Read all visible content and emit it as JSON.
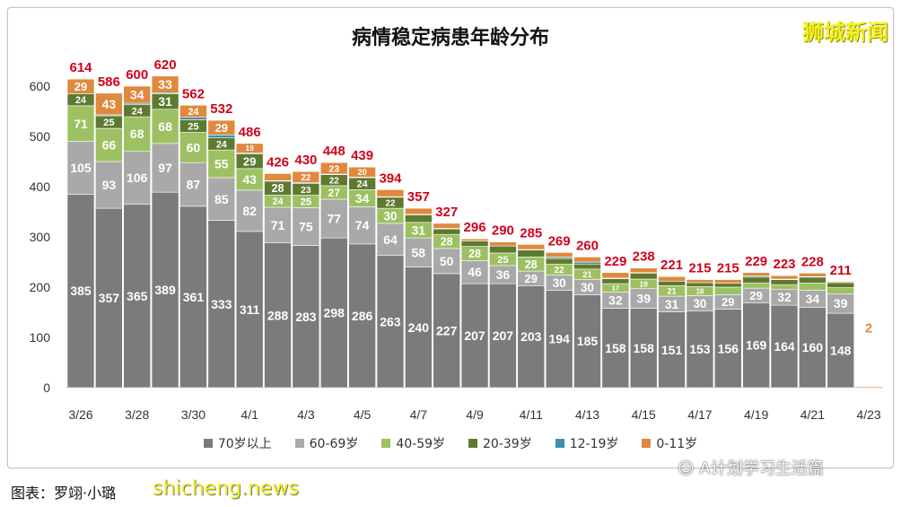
{
  "chart_data": {
    "type": "bar",
    "stacked": true,
    "title": "病情稳定病患年龄分布",
    "categories": [
      "3/26",
      "3/27",
      "3/28",
      "3/29",
      "3/30",
      "3/31",
      "4/1",
      "4/2",
      "4/3",
      "4/4",
      "4/5",
      "4/6",
      "4/7",
      "4/8",
      "4/9",
      "4/10",
      "4/11",
      "4/12",
      "4/13",
      "4/14",
      "4/15",
      "4/16",
      "4/17",
      "4/18",
      "4/19",
      "4/20",
      "4/21",
      "4/22",
      "4/23"
    ],
    "x_tick_labels": [
      "3/26",
      "3/28",
      "3/30",
      "4/1",
      "4/3",
      "4/5",
      "4/7",
      "4/9",
      "4/11",
      "4/13",
      "4/15",
      "4/17",
      "4/19",
      "4/21",
      "4/23"
    ],
    "ylim": [
      0,
      600
    ],
    "y_ticks": [
      0,
      100,
      200,
      300,
      400,
      500,
      600
    ],
    "grid": false,
    "legend_position": "bottom",
    "series": [
      {
        "name": "70岁以上",
        "color": "#7b7b7b",
        "values": [
          385,
          357,
          365,
          389,
          361,
          333,
          311,
          288,
          283,
          298,
          286,
          263,
          240,
          227,
          207,
          207,
          203,
          194,
          185,
          158,
          158,
          151,
          153,
          156,
          169,
          164,
          160,
          148,
          0
        ]
      },
      {
        "name": "60-69岁",
        "color": "#a9a9a9",
        "values": [
          105,
          93,
          106,
          97,
          87,
          85,
          82,
          71,
          75,
          77,
          74,
          64,
          58,
          50,
          46,
          36,
          29,
          30,
          30,
          32,
          39,
          31,
          30,
          29,
          29,
          32,
          34,
          39,
          0
        ]
      },
      {
        "name": "40-59岁",
        "color": "#9dc162",
        "values": [
          71,
          66,
          68,
          68,
          60,
          55,
          43,
          24,
          25,
          27,
          34,
          30,
          31,
          28,
          28,
          25,
          28,
          22,
          21,
          17,
          19,
          21,
          18,
          15,
          10,
          9,
          14,
          12,
          0
        ]
      },
      {
        "name": "20-39岁",
        "color": "#5e7a30",
        "values": [
          24,
          25,
          24,
          31,
          25,
          24,
          29,
          28,
          23,
          22,
          24,
          22,
          15,
          11,
          11,
          14,
          14,
          11,
          10,
          10,
          12,
          9,
          8,
          8,
          12,
          10,
          12,
          10,
          0
        ]
      },
      {
        "name": "12-19岁",
        "color": "#3f8fa6",
        "values": [
          0,
          2,
          3,
          2,
          5,
          6,
          2,
          1,
          2,
          1,
          1,
          1,
          1,
          1,
          0,
          0,
          1,
          3,
          4,
          1,
          1,
          0,
          0,
          0,
          2,
          1,
          1,
          0,
          0
        ]
      },
      {
        "name": "0-11岁",
        "color": "#e0893e",
        "values": [
          29,
          43,
          34,
          33,
          24,
          29,
          19,
          14,
          22,
          23,
          20,
          14,
          12,
          10,
          4,
          8,
          10,
          9,
          10,
          11,
          9,
          9,
          6,
          7,
          7,
          7,
          7,
          2,
          2
        ]
      }
    ],
    "totals": [
      614,
      586,
      600,
      620,
      562,
      532,
      486,
      426,
      430,
      448,
      439,
      394,
      357,
      327,
      296,
      290,
      285,
      269,
      260,
      229,
      238,
      221,
      215,
      215,
      229,
      223,
      228,
      211,
      2
    ],
    "total_label_color": "#d0021b"
  },
  "caption": "图表：罗翊·小璐",
  "watermarks": {
    "top_right": "狮城新闻",
    "site": "shicheng.news",
    "account": "A计划学习生活篇"
  }
}
